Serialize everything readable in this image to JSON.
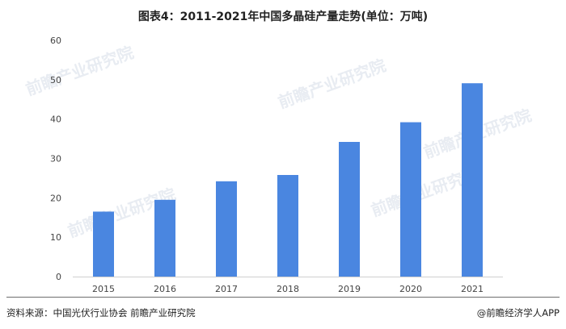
{
  "chart_data": {
    "type": "bar",
    "title": "图表4：2011-2021年中国多晶硅产量走势(单位：万吨)",
    "categories": [
      "2015",
      "2016",
      "2017",
      "2018",
      "2019",
      "2020",
      "2021"
    ],
    "values": [
      16.5,
      19.5,
      24.2,
      25.8,
      34.2,
      39.2,
      49.1
    ],
    "ylim": [
      0,
      60
    ],
    "yticks": [
      0,
      10,
      20,
      30,
      40,
      50,
      60
    ],
    "xlabel": "",
    "ylabel": "",
    "grid": false,
    "legend": "none",
    "bar_color": "#4a86e0"
  },
  "footer": {
    "source": "资料来源：中国光伏行业协会 前瞻产业研究院",
    "brand": "@前瞻经济学人APP"
  },
  "watermark": {
    "text": "前瞻产业研究院"
  }
}
